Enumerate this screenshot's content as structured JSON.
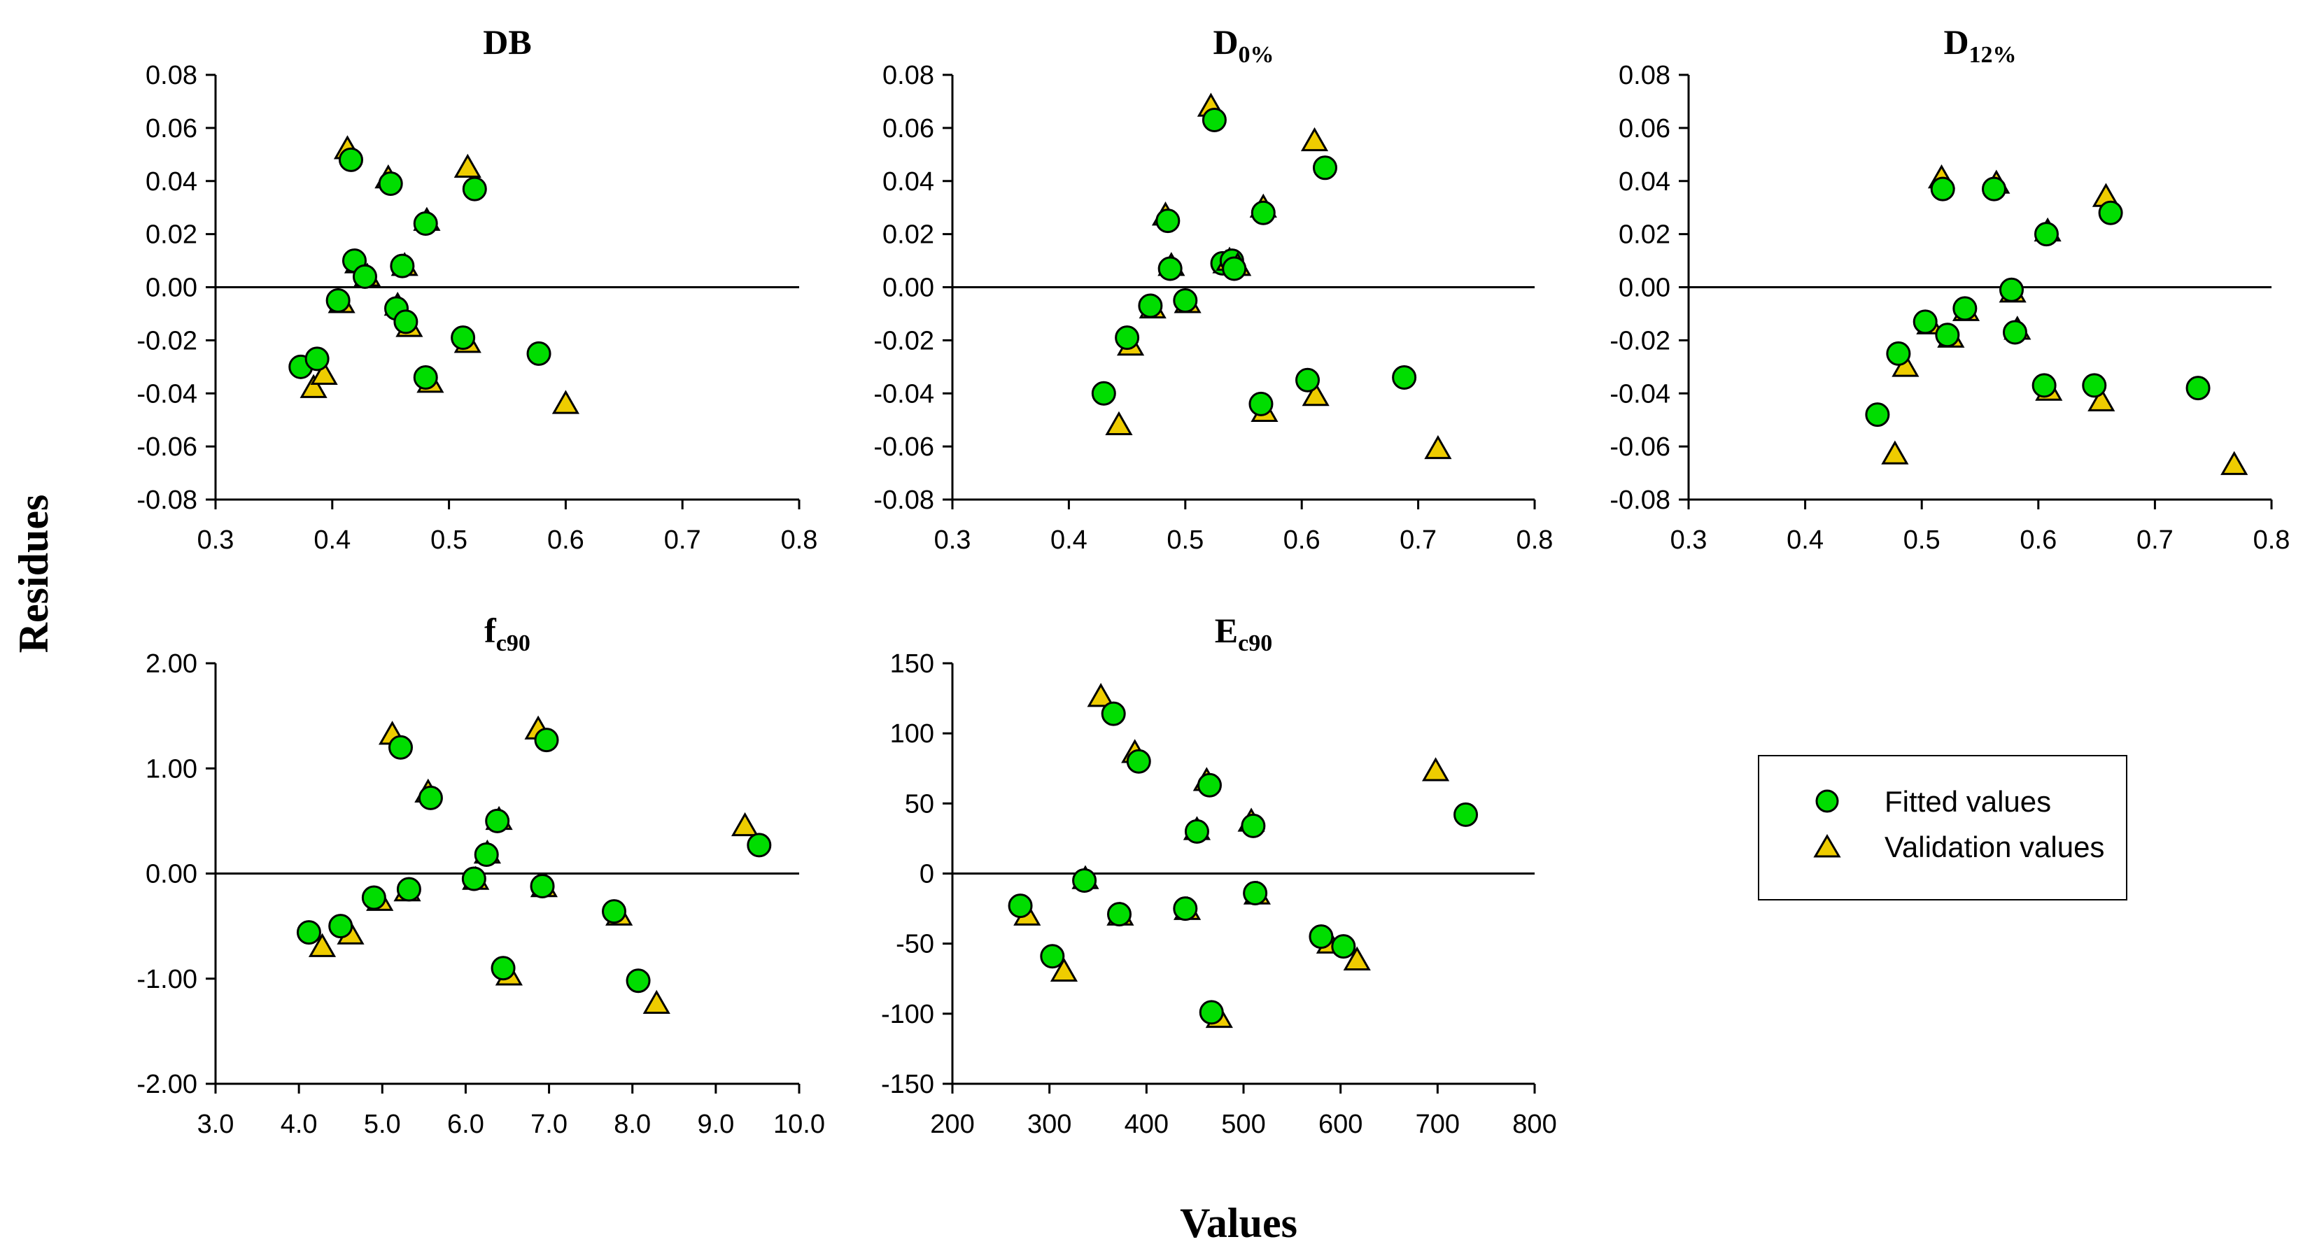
{
  "figure": {
    "xlabel": "Values",
    "ylabel": "Residues",
    "legend": {
      "placement": "right of bottom row",
      "entries": [
        {
          "label": "Fitted values",
          "marker": "circle",
          "color": "#00dd00"
        },
        {
          "label": "Validation values",
          "marker": "triangle",
          "color": "#eecc00"
        }
      ]
    }
  },
  "chart_data": [
    {
      "type": "scatter",
      "title": "DB",
      "title_sub": "",
      "xlim": [
        0.3,
        0.8
      ],
      "ylim": [
        -0.08,
        0.08
      ],
      "xticks": [
        "0.3",
        "0.4",
        "0.5",
        "0.6",
        "0.7",
        "0.8"
      ],
      "yticks": [
        "-0.08",
        "-0.06",
        "-0.04",
        "-0.02",
        "0.00",
        "0.02",
        "0.04",
        "0.06",
        "0.08"
      ],
      "series": [
        {
          "name": "Fitted values",
          "points": [
            [
              0.373,
              -0.03
            ],
            [
              0.387,
              -0.027
            ],
            [
              0.405,
              -0.005
            ],
            [
              0.416,
              0.048
            ],
            [
              0.419,
              0.01
            ],
            [
              0.428,
              0.004
            ],
            [
              0.45,
              0.039
            ],
            [
              0.455,
              -0.008
            ],
            [
              0.46,
              0.008
            ],
            [
              0.48,
              0.024
            ],
            [
              0.48,
              -0.034
            ],
            [
              0.512,
              -0.019
            ],
            [
              0.522,
              0.037
            ],
            [
              0.577,
              -0.025
            ],
            [
              0.463,
              -0.013
            ]
          ]
        },
        {
          "name": "Validation values",
          "points": [
            [
              0.384,
              -0.038
            ],
            [
              0.393,
              -0.033
            ],
            [
              0.408,
              -0.006
            ],
            [
              0.413,
              0.052
            ],
            [
              0.422,
              0.009
            ],
            [
              0.43,
              0.004
            ],
            [
              0.448,
              0.041
            ],
            [
              0.456,
              -0.007
            ],
            [
              0.462,
              0.008
            ],
            [
              0.481,
              0.025
            ],
            [
              0.484,
              -0.036
            ],
            [
              0.516,
              -0.021
            ],
            [
              0.516,
              0.045
            ],
            [
              0.6,
              -0.044
            ],
            [
              0.466,
              -0.015
            ]
          ]
        }
      ]
    },
    {
      "type": "scatter",
      "title": "D",
      "title_sub": "0%",
      "xlim": [
        0.3,
        0.8
      ],
      "ylim": [
        -0.08,
        0.08
      ],
      "xticks": [
        "0.3",
        "0.4",
        "0.5",
        "0.6",
        "0.7",
        "0.8"
      ],
      "yticks": [
        "-0.08",
        "-0.06",
        "-0.04",
        "-0.02",
        "0.00",
        "0.02",
        "0.04",
        "0.06",
        "0.08"
      ],
      "series": [
        {
          "name": "Fitted values",
          "points": [
            [
              0.43,
              -0.04
            ],
            [
              0.45,
              -0.019
            ],
            [
              0.47,
              -0.007
            ],
            [
              0.485,
              0.025
            ],
            [
              0.487,
              0.007
            ],
            [
              0.5,
              -0.005
            ],
            [
              0.525,
              0.063
            ],
            [
              0.532,
              0.009
            ],
            [
              0.54,
              0.01
            ],
            [
              0.542,
              0.007
            ],
            [
              0.565,
              -0.044
            ],
            [
              0.567,
              0.028
            ],
            [
              0.605,
              -0.035
            ],
            [
              0.62,
              0.045
            ],
            [
              0.688,
              -0.034
            ]
          ]
        },
        {
          "name": "Validation values",
          "points": [
            [
              0.443,
              -0.052
            ],
            [
              0.453,
              -0.022
            ],
            [
              0.472,
              -0.008
            ],
            [
              0.483,
              0.027
            ],
            [
              0.488,
              0.008
            ],
            [
              0.502,
              -0.006
            ],
            [
              0.522,
              0.068
            ],
            [
              0.535,
              0.009
            ],
            [
              0.538,
              0.01
            ],
            [
              0.545,
              0.008
            ],
            [
              0.568,
              -0.047
            ],
            [
              0.567,
              0.03
            ],
            [
              0.612,
              -0.041
            ],
            [
              0.611,
              0.055
            ],
            [
              0.717,
              -0.061
            ]
          ]
        }
      ]
    },
    {
      "type": "scatter",
      "title": "D",
      "title_sub": "12%",
      "xlim": [
        0.3,
        0.8
      ],
      "ylim": [
        -0.08,
        0.08
      ],
      "xticks": [
        "0.3",
        "0.4",
        "0.5",
        "0.6",
        "0.7",
        "0.8"
      ],
      "yticks": [
        "-0.08",
        "-0.06",
        "-0.04",
        "-0.02",
        "0.00",
        "0.02",
        "0.04",
        "0.06",
        "0.08"
      ],
      "series": [
        {
          "name": "Fitted values",
          "points": [
            [
              0.462,
              -0.048
            ],
            [
              0.48,
              -0.025
            ],
            [
              0.503,
              -0.013
            ],
            [
              0.518,
              0.037
            ],
            [
              0.522,
              -0.018
            ],
            [
              0.537,
              -0.008
            ],
            [
              0.562,
              0.037
            ],
            [
              0.577,
              -0.001
            ],
            [
              0.58,
              -0.017
            ],
            [
              0.605,
              -0.037
            ],
            [
              0.607,
              0.02
            ],
            [
              0.648,
              -0.037
            ],
            [
              0.662,
              0.028
            ],
            [
              0.737,
              -0.038
            ]
          ]
        },
        {
          "name": "Validation values",
          "points": [
            [
              0.477,
              -0.063
            ],
            [
              0.486,
              -0.03
            ],
            [
              0.507,
              -0.014
            ],
            [
              0.517,
              0.041
            ],
            [
              0.525,
              -0.019
            ],
            [
              0.538,
              -0.009
            ],
            [
              0.564,
              0.039
            ],
            [
              0.578,
              -0.002
            ],
            [
              0.582,
              -0.016
            ],
            [
              0.609,
              -0.039
            ],
            [
              0.608,
              0.021
            ],
            [
              0.654,
              -0.043
            ],
            [
              0.658,
              0.034
            ],
            [
              0.768,
              -0.067
            ]
          ]
        }
      ]
    },
    {
      "type": "scatter",
      "title": "f",
      "title_sub": "c90",
      "xlim": [
        3.0,
        10.0
      ],
      "ylim": [
        -2.0,
        2.0
      ],
      "xticks": [
        "3.0",
        "4.0",
        "5.0",
        "6.0",
        "7.0",
        "8.0",
        "9.0",
        "10.0"
      ],
      "yticks": [
        "-2.00",
        "-1.00",
        "0.00",
        "1.00",
        "2.00"
      ],
      "series": [
        {
          "name": "Fitted values",
          "points": [
            [
              4.12,
              -0.56
            ],
            [
              4.5,
              -0.5
            ],
            [
              4.9,
              -0.23
            ],
            [
              5.22,
              1.2
            ],
            [
              5.32,
              -0.15
            ],
            [
              5.58,
              0.72
            ],
            [
              6.1,
              -0.05
            ],
            [
              6.25,
              0.18
            ],
            [
              6.38,
              0.5
            ],
            [
              6.45,
              -0.9
            ],
            [
              6.92,
              -0.12
            ],
            [
              6.97,
              1.27
            ],
            [
              7.78,
              -0.36
            ],
            [
              8.07,
              -1.02
            ],
            [
              9.52,
              0.27
            ]
          ]
        },
        {
          "name": "Validation values",
          "points": [
            [
              4.28,
              -0.7
            ],
            [
              4.62,
              -0.58
            ],
            [
              4.97,
              -0.26
            ],
            [
              5.12,
              1.32
            ],
            [
              5.3,
              -0.17
            ],
            [
              5.55,
              0.77
            ],
            [
              6.12,
              -0.06
            ],
            [
              6.26,
              0.19
            ],
            [
              6.4,
              0.51
            ],
            [
              6.52,
              -0.97
            ],
            [
              6.94,
              -0.13
            ],
            [
              6.87,
              1.37
            ],
            [
              7.84,
              -0.4
            ],
            [
              8.29,
              -1.24
            ],
            [
              9.35,
              0.45
            ]
          ]
        }
      ]
    },
    {
      "type": "scatter",
      "title": "E",
      "title_sub": "c90",
      "xlim": [
        200,
        800
      ],
      "ylim": [
        -150,
        150
      ],
      "xticks": [
        "200",
        "300",
        "400",
        "500",
        "600",
        "700",
        "800"
      ],
      "yticks": [
        "-150",
        "-100",
        "-50",
        "0",
        "50",
        "100",
        "150"
      ],
      "series": [
        {
          "name": "Fitted values",
          "points": [
            [
              270,
              -23
            ],
            [
              303,
              -59
            ],
            [
              336,
              -5
            ],
            [
              366,
              114
            ],
            [
              372,
              -29
            ],
            [
              392,
              80
            ],
            [
              440,
              -25
            ],
            [
              452,
              30
            ],
            [
              465,
              63
            ],
            [
              467,
              -99
            ],
            [
              510,
              34
            ],
            [
              512,
              -14
            ],
            [
              580,
              -45
            ],
            [
              603,
              -52
            ],
            [
              729,
              42
            ]
          ]
        },
        {
          "name": "Validation values",
          "points": [
            [
              277,
              -30
            ],
            [
              315,
              -70
            ],
            [
              337,
              -4
            ],
            [
              353,
              126
            ],
            [
              373,
              -30
            ],
            [
              388,
              86
            ],
            [
              442,
              -26
            ],
            [
              452,
              31
            ],
            [
              462,
              66
            ],
            [
              475,
              -103
            ],
            [
              508,
              37
            ],
            [
              514,
              -15
            ],
            [
              589,
              -50
            ],
            [
              617,
              -62
            ],
            [
              698,
              73
            ]
          ]
        }
      ]
    }
  ]
}
